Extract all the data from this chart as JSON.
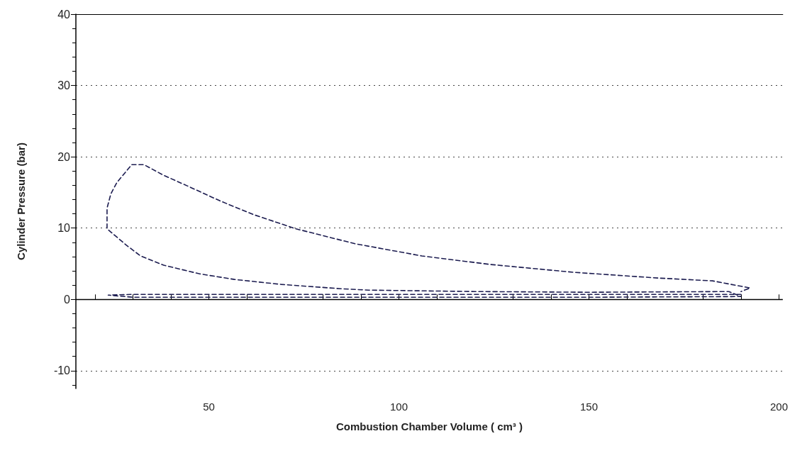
{
  "chart_data": {
    "type": "line",
    "xlabel": "Combustion Chamber Volume ( cm³ )",
    "ylabel": "Cylinder Pressure (bar)",
    "xlim": [
      15,
      201
    ],
    "ylim": [
      -12.5,
      40
    ],
    "xticks": [
      {
        "value": 20,
        "label": null
      },
      {
        "value": 30,
        "label": null
      },
      {
        "value": 40,
        "label": null
      },
      50,
      {
        "value": 60,
        "label": null
      },
      {
        "value": 80,
        "label": null
      },
      {
        "value": 90,
        "label": null
      },
      100,
      {
        "value": 110,
        "label": null
      },
      {
        "value": 130,
        "label": null
      },
      {
        "value": 140,
        "label": null
      },
      150,
      {
        "value": 160,
        "label": null
      },
      {
        "value": 180,
        "label": null
      },
      {
        "value": 190,
        "label": null
      },
      200
    ],
    "yticks": [
      -10,
      0,
      10,
      20,
      30,
      40
    ],
    "grid": "y",
    "line_style": "dashed",
    "marker": "none",
    "ref_lines": [
      {
        "axis": "y",
        "value": 0,
        "color": "#000000",
        "line_style": "solid"
      }
    ],
    "series": [
      {
        "color": "#1c1c50",
        "x": [
          190,
          150,
          100,
          60,
          30,
          23.5,
          30,
          60,
          100,
          150,
          190,
          186.8,
          150,
          120,
          92,
          84.6,
          69,
          56.7,
          47.4,
          38.1,
          32,
          28.3,
          23.2,
          23.2,
          24.2,
          25.8,
          29.7,
          32.9,
          38.1,
          44.4,
          53,
          61.7,
          72.9,
          88.5,
          106,
          124,
          146,
          168,
          182.5,
          192.4,
          190
        ],
        "values": [
          0.7,
          0.7,
          0.7,
          0.7,
          0.7,
          0.6,
          0.3,
          0.3,
          0.3,
          0.3,
          0.4,
          1.1,
          1.0,
          1.1,
          1.3,
          1.5,
          2.1,
          2.8,
          3.6,
          4.8,
          6.1,
          7.6,
          9.9,
          12.8,
          14.8,
          16.4,
          18.9,
          18.9,
          17.4,
          15.9,
          13.8,
          11.9,
          9.9,
          7.8,
          6.1,
          4.9,
          3.8,
          3.0,
          2.6,
          1.6,
          1.1
        ]
      }
    ]
  }
}
